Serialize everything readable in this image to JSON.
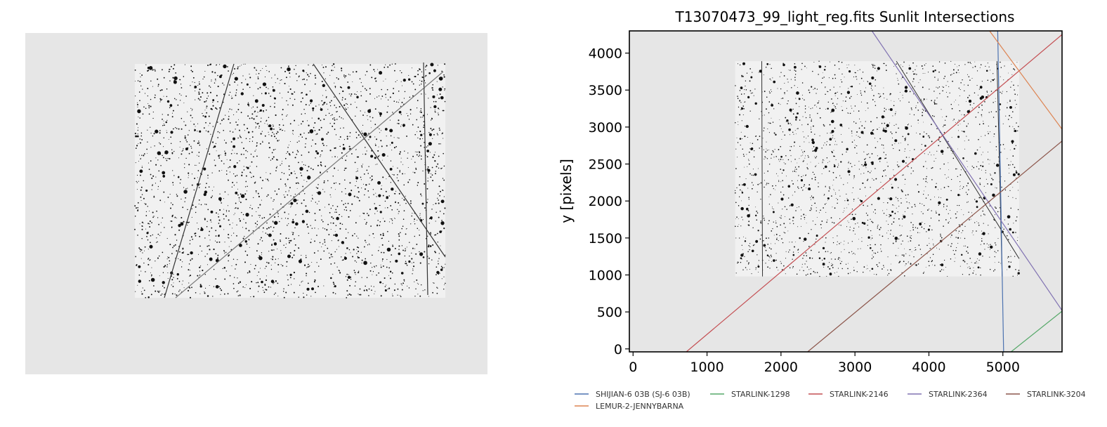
{
  "chart_data": [
    {
      "type": "image",
      "panel": "left",
      "description_kind": "star field frame with satellite streaks",
      "background_color": "#e6e6e6"
    },
    {
      "type": "line",
      "title": "T13070473_99_light_reg.fits Sunlit Intersections",
      "xlabel": "",
      "ylabel": "y [pixels]",
      "xlim": [
        -50,
        5800
      ],
      "ylim": [
        -40,
        4300
      ],
      "xticks": [
        0,
        1000,
        2000,
        3000,
        4000,
        5000
      ],
      "yticks": [
        0,
        500,
        1000,
        1500,
        2000,
        2500,
        3000,
        3500,
        4000
      ],
      "image_extent": {
        "x": [
          1380,
          5220
        ],
        "y": [
          980,
          3890
        ]
      },
      "grid": false,
      "legend_position": "bottom",
      "series": [
        {
          "name": "SHIJIAN-6 03B (SJ-6 03B)",
          "color": "#4c72b0",
          "x": [
            4930,
            5010
          ],
          "y": [
            4300,
            -40
          ]
        },
        {
          "name": "STARLINK-1298",
          "color": "#55a868",
          "x": [
            5110,
            5800
          ],
          "y": [
            -40,
            510
          ]
        },
        {
          "name": "STARLINK-2146",
          "color": "#c44e52",
          "x": [
            720,
            5800
          ],
          "y": [
            -40,
            4250
          ]
        },
        {
          "name": "STARLINK-2364",
          "color": "#8172b2",
          "x": [
            3230,
            5800
          ],
          "y": [
            4300,
            520
          ]
        },
        {
          "name": "STARLINK-3204",
          "color": "#8c564b",
          "x": [
            2360,
            5800
          ],
          "y": [
            -40,
            2810
          ]
        },
        {
          "name": "LEMUR-2-JENNYBARNA",
          "color": "#dd8452",
          "x": [
            4820,
            5800
          ],
          "y": [
            4300,
            2970
          ]
        }
      ]
    }
  ]
}
